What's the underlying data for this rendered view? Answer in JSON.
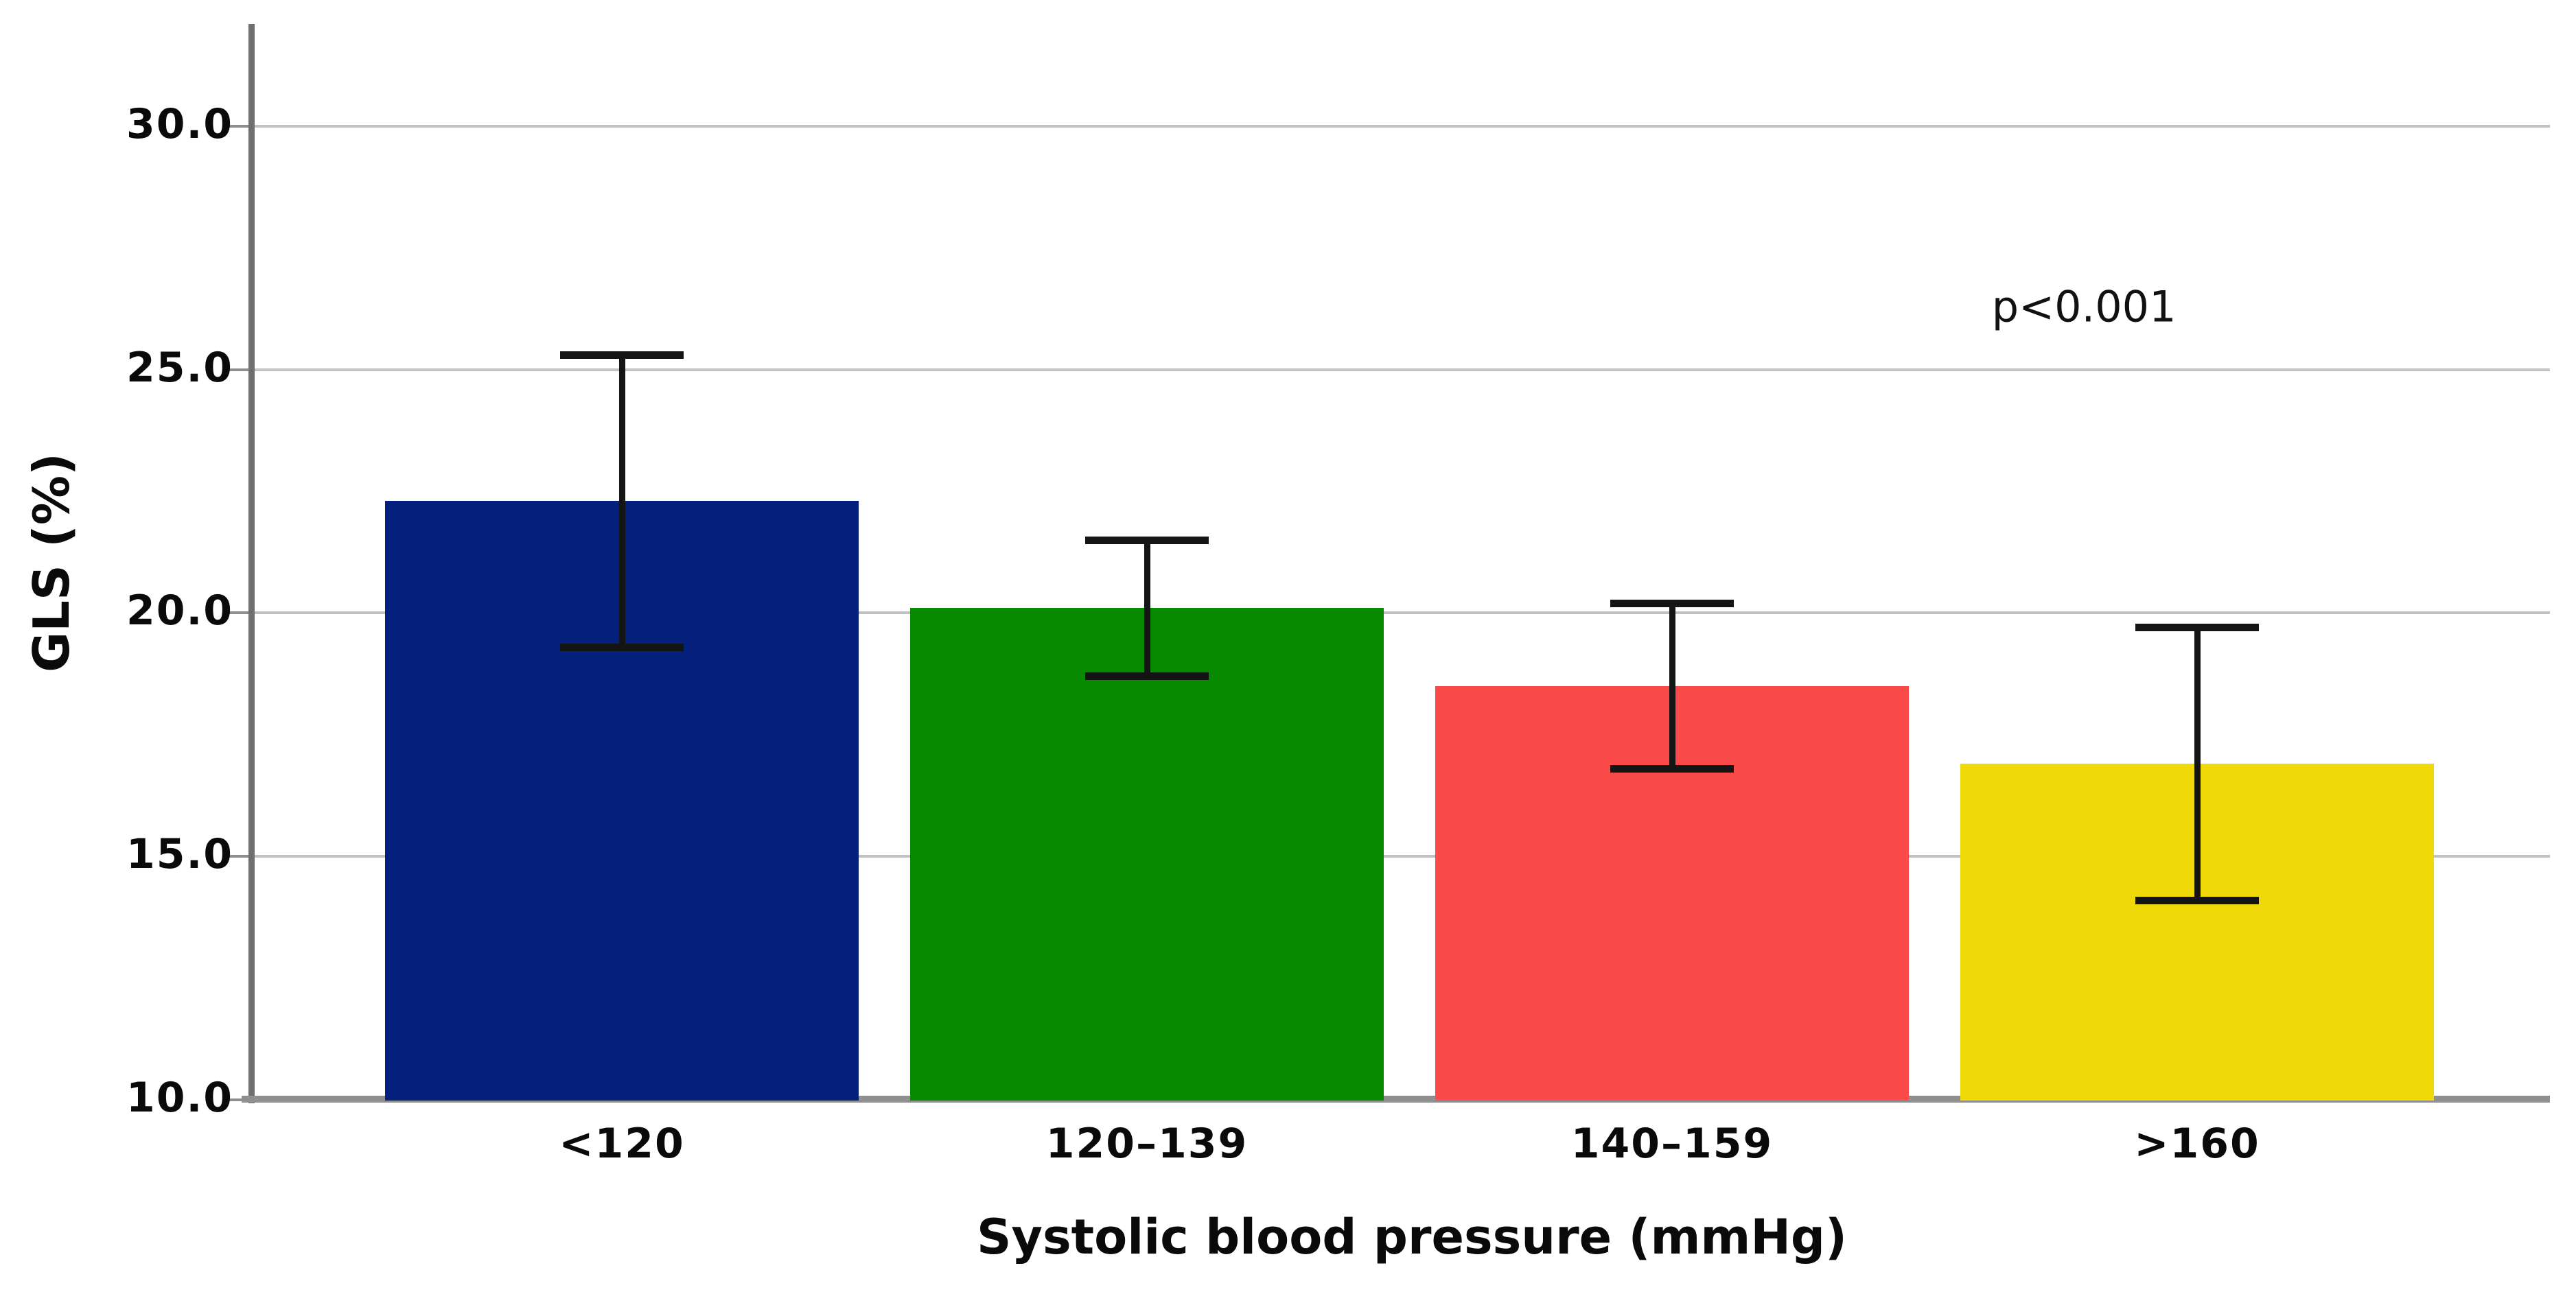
{
  "chart_data": {
    "type": "bar",
    "title": "",
    "categories": [
      "<120",
      "120–139",
      "140–159",
      ">160"
    ],
    "series": [
      {
        "name": "GLS",
        "values": [
          22.3,
          20.1,
          18.5,
          16.9
        ]
      }
    ],
    "error_bars": {
      "upper": [
        25.3,
        21.5,
        20.2,
        19.7
      ],
      "lower": [
        19.3,
        18.7,
        16.8,
        14.1
      ]
    },
    "bar_colors": [
      "#051f7d",
      "#088a00",
      "#fb4a4a",
      "#efd908"
    ],
    "xlabel": "Systolic blood pressure (mmHg)",
    "ylabel": "GLS (%)",
    "yticks": [
      10,
      15,
      20,
      25,
      30
    ],
    "ytick_labels": [
      "10.0",
      "15.0",
      "20.0",
      "25.0",
      "30.0"
    ],
    "ylim": [
      10,
      32.1
    ],
    "grid": true,
    "legend_position": "none",
    "annotation": {
      "text": "p<0.001",
      "x_frac": 0.809,
      "y_value": 26.3
    }
  },
  "style_colors": {
    "background": "#ffffff",
    "gridline": "#c2c2c2",
    "y_axis_line": "#6f6f6f",
    "x_axis_line": "#8f8f8f",
    "tick_mark": "#8f8f8f",
    "error_bar": "#141414",
    "text": "#0a0a0a"
  }
}
